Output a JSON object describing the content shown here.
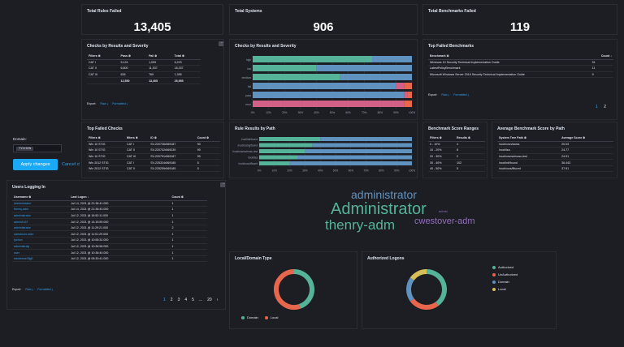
{
  "kpis": [
    {
      "title": "Total Rules Failed",
      "value": "13,405"
    },
    {
      "title": "Total Systems",
      "value": "906"
    },
    {
      "title": "Total Benchmarks Failed",
      "value": "119"
    }
  ],
  "checks_table": {
    "title": "Checks by Results and Severity",
    "headers": [
      "Filters ≑",
      "Pass ≑",
      "Fail ≑",
      "Total ≑"
    ],
    "rows": [
      [
        "CAT I",
        "5,124",
        "1,099",
        "6,223"
      ],
      [
        "CAT II",
        "6,800",
        "11,537",
        "18,337"
      ],
      [
        "CAT III",
        "626",
        "769",
        "1,395"
      ]
    ],
    "totals": [
      "",
      "12,550",
      "13,405",
      "25,955"
    ],
    "export_label": "Export:",
    "raw_label": "Raw",
    "formatted_label": "Formatted"
  },
  "checks_chart": {
    "title": "Checks by Results and Severity"
  },
  "top_failed_benchmarks": {
    "title": "Top Failed Benchmarks",
    "headers": [
      "Benchmark ≑",
      "Count ↓"
    ],
    "rows": [
      [
        "Windows 10 Security Technical Implementation Guide",
        "91"
      ],
      [
        "LatestPolicyBenchmark",
        "11"
      ],
      [
        "Microsoft Windows Server 2016 Security Technical Implementation Guide",
        "9"
      ]
    ],
    "export_label": "Export:",
    "raw_label": "Raw",
    "formatted_label": "Formatted",
    "pages": [
      "1",
      "2"
    ]
  },
  "domain_filter": {
    "label": "Domain:",
    "chip": "TYCHON",
    "apply": "Apply changes",
    "cancel": "Cancel ch"
  },
  "top_failed_checks": {
    "title": "Top Failed Checks",
    "headers": [
      "Filters ≑",
      "filters ≑",
      "ID ≑",
      "Count ≑"
    ],
    "rows": [
      [
        "Win 10 STIG",
        "CAT I",
        "SV-220726r569187",
        "90"
      ],
      [
        "Win 10 STIG",
        "CAT II",
        "SV-220702r569239",
        "90"
      ],
      [
        "Win 10 STIG",
        "CAT III",
        "SV-220791r569187",
        "90"
      ],
      [
        "Win 2012 STIG",
        "CAT I",
        "SV-225324r569185",
        "5"
      ],
      [
        "Win 2012 STIG",
        "CAT II",
        "SV-225259r569185",
        "5"
      ]
    ]
  },
  "rule_results": {
    "title": "Rule Results by Path"
  },
  "benchmark_ranges": {
    "title": "Benchmark Score Ranges",
    "headers": [
      "Filters ≑",
      "Results ≑"
    ],
    "rows": [
      [
        "0 - 10%",
        "4"
      ],
      [
        "10 - 20%",
        "8"
      ],
      [
        "20 - 30%",
        "2"
      ],
      [
        "30 - 40%",
        "102"
      ],
      [
        "40 - 50%",
        "5"
      ]
    ]
  },
  "avg_benchmark": {
    "title": "Average Benchmark Score by Path",
    "headers": [
      "System Tree Path ≑",
      "Average Score ≑"
    ],
    "rows": [
      [
        "/root/cvsn/swiss",
        "20.03"
      ],
      [
        "/root/ilsa",
        "24.77"
      ],
      [
        "/root/cvsmc/mosc-lest",
        "24.91"
      ],
      [
        "/root/inti/found",
        "36.443"
      ],
      [
        "/root/cocs/lflscmt",
        "37.91"
      ]
    ]
  },
  "users_logging": {
    "title": "Users Logging In",
    "headers": [
      "Username ≑",
      "Last Logon ↓",
      "Count ≑"
    ],
    "rows": [
      [
        "Administrator",
        "Jul 14, 2021 @ 21:36:41.000",
        "1"
      ],
      [
        "thenry-adm",
        "Jul 14, 2021 @ 21:36:43.000",
        "1"
      ],
      [
        "administrator",
        "Jul 12, 2021 @ 16:52:11.000",
        "1"
      ],
      [
        "admin1167",
        "Jul 12, 2021 @ 14:15:59.000",
        "1"
      ],
      [
        "administrator",
        "Jul 12, 2021 @ 11:29:21.000",
        "2"
      ],
      [
        "cwestover-adm",
        "Jul 12, 2021 @ 11:01:29.000",
        "1"
      ],
      [
        "tychon",
        "Jul 12, 2021 @ 10:55:32.000",
        "1"
      ],
      [
        "administraly",
        "Jul 12, 2021 @ 10:36:58.000",
        "1"
      ],
      [
        "user",
        "Jul 12, 2021 @ 10:36:40.000",
        "1"
      ],
      [
        "eandrewe2llg5",
        "Jul 12, 2021 @ 08:30:41.000",
        "1"
      ]
    ],
    "export_label": "Export:",
    "raw_label": "Raw",
    "formatted_label": "Formatted",
    "pages": [
      "1",
      "2",
      "3",
      "4",
      "5",
      "...",
      "20",
      "›"
    ]
  },
  "word_cloud": [
    {
      "text": "administrator",
      "color": "#6092c0"
    },
    {
      "text": "Administrator",
      "color": "#54b399"
    },
    {
      "text": "thenry-adm",
      "color": "#54b399"
    },
    {
      "text": "cwestover-adm",
      "color": "#9170b8"
    },
    {
      "text": "admin",
      "color": "#9170b8"
    }
  ],
  "local_domain": {
    "title": "Local/Domain Type",
    "legend": [
      {
        "label": "Domain",
        "color": "#54b399"
      },
      {
        "label": "Local",
        "color": "#e7664c"
      }
    ]
  },
  "authorized": {
    "title": "Authorized Logons",
    "legend": [
      {
        "label": "Authorized",
        "color": "#54b399"
      },
      {
        "label": "UnAuthorized",
        "color": "#e7664c"
      },
      {
        "label": "Domain",
        "color": "#6092c0"
      },
      {
        "label": "Local",
        "color": "#d6bf57"
      }
    ]
  },
  "chart_data": [
    {
      "type": "bar",
      "title": "Checks by Results and Severity",
      "orientation": "horizontal",
      "stacked": "percent",
      "categories": [
        "high",
        "low",
        "medium",
        "fail",
        "pass",
        "error"
      ],
      "series": [
        {
          "color": "#54b399",
          "values": [
            75,
            40,
            55,
            0,
            0,
            0
          ]
        },
        {
          "color": "#6092c0",
          "values": [
            25,
            60,
            45,
            90,
            95,
            0
          ]
        },
        {
          "color": "#d36086",
          "values": [
            0,
            0,
            0,
            5,
            2,
            95
          ]
        },
        {
          "color": "#e7664c",
          "values": [
            0,
            0,
            0,
            5,
            3,
            5
          ]
        }
      ],
      "xticks": [
        "0%",
        "10%",
        "20%",
        "30%",
        "40%",
        "50%",
        "60%",
        "70%",
        "80%",
        "90%",
        "100%"
      ]
    },
    {
      "type": "bar",
      "title": "Rule Results by Path",
      "orientation": "horizontal",
      "stacked": "percent",
      "categories": [
        "/root/inti/found",
        "/root/cvsng/found",
        "/root/cvsmc/mosc-lest",
        "/root/ilsa",
        "/root/cocs/lflscmt"
      ],
      "series": [
        {
          "color": "#54b399",
          "values": [
            40,
            35,
            30,
            25,
            20
          ]
        },
        {
          "color": "#6092c0",
          "values": [
            60,
            65,
            70,
            75,
            80
          ]
        }
      ],
      "xticks": [
        "0%",
        "10%",
        "20%",
        "30%",
        "40%",
        "50%",
        "60%",
        "70%",
        "80%",
        "90%",
        "100%"
      ]
    },
    {
      "type": "pie",
      "title": "Local/Domain Type",
      "values": [
        {
          "label": "Domain",
          "value": 45
        },
        {
          "label": "Local",
          "value": 55
        }
      ]
    },
    {
      "type": "pie",
      "title": "Authorized Logons",
      "values": [
        {
          "label": "Authorized",
          "value": 40
        },
        {
          "label": "UnAuthorized",
          "value": 25
        },
        {
          "label": "Domain",
          "value": 20
        },
        {
          "label": "Local",
          "value": 15
        }
      ]
    }
  ]
}
